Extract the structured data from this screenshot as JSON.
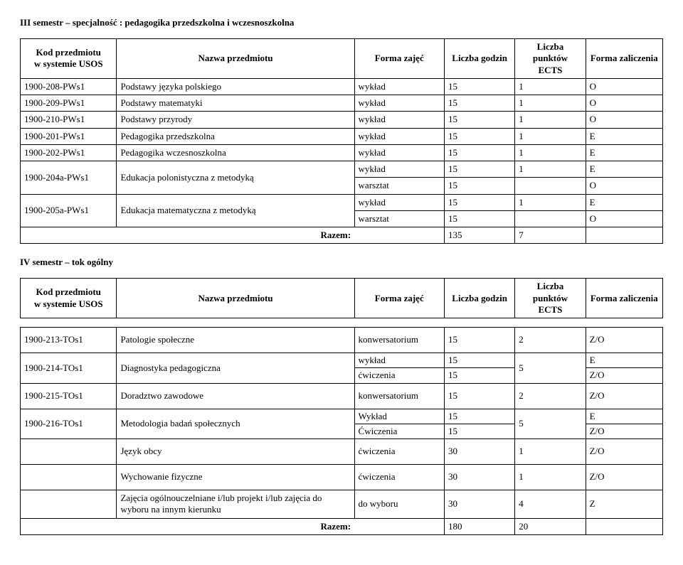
{
  "labels": {
    "razem": "Razem:"
  },
  "headers": {
    "code": "Kod przedmiotu\nw systemie USOS",
    "name": "Nazwa przedmiotu",
    "form": "Forma zajęć",
    "hours": "Liczba godzin",
    "points": "Liczba punktów\nECTS",
    "grade": "Forma zaliczenia"
  },
  "section1": {
    "title": "III semestr – specjalność : pedagogika przedszkolna i wczesnoszkolna",
    "rows": [
      {
        "code": "1900-208-PWs1",
        "name": "Podstawy języka polskiego",
        "form": "wykład",
        "hours": "15",
        "points": "1",
        "grade": "O"
      },
      {
        "code": "1900-209-PWs1",
        "name": "Podstawy matematyki",
        "form": "wykład",
        "hours": "15",
        "points": "1",
        "grade": "O"
      },
      {
        "code": "1900-210-PWs1",
        "name": "Podstawy przyrody",
        "form": "wykład",
        "hours": "15",
        "points": "1",
        "grade": "O"
      },
      {
        "code": "1900-201-PWs1",
        "name": "Pedagogika przedszkolna",
        "form": "wykład",
        "hours": "15",
        "points": "1",
        "grade": "E"
      },
      {
        "code": "1900-202-PWs1",
        "name": "Pedagogika wczesnoszkolna",
        "form": "wykład",
        "hours": "15",
        "points": "1",
        "grade": "E"
      }
    ],
    "multiA": {
      "code": "1900-204a-PWs1",
      "name": "Edukacja polonistyczna z metodyką",
      "lines": [
        {
          "form": "wykład",
          "hours": "15",
          "points": "1",
          "grade": "E"
        },
        {
          "form": "warsztat",
          "hours": "15",
          "points": "",
          "grade": "O"
        }
      ]
    },
    "multiB": {
      "code": "1900-205a-PWs1",
      "name": "Edukacja matematyczna z metodyką",
      "lines": [
        {
          "form": "wykład",
          "hours": "15",
          "points": "1",
          "grade": "E"
        },
        {
          "form": "warsztat",
          "hours": "15",
          "points": "",
          "grade": "O"
        }
      ]
    },
    "total": {
      "hours": "135",
      "points": "7"
    }
  },
  "section2": {
    "title": "IV semestr – tok ogólny",
    "row1": {
      "code": "1900-213-TOs1",
      "name": "Patologie społeczne",
      "form": "konwersatorium",
      "hours": "15",
      "points": "2",
      "grade": "Z/O"
    },
    "row2": {
      "code": "1900-214-TOs1",
      "name": "Diagnostyka pedagogiczna",
      "lineA": {
        "form": "wykład",
        "hours": "15",
        "grade": "E"
      },
      "lineB": {
        "form": "ćwiczenia",
        "hours": "15",
        "grade": "Z/O"
      },
      "points": "5"
    },
    "row3": {
      "code": "1900-215-TOs1",
      "name": "Doradztwo zawodowe",
      "form": "konwersatorium",
      "hours": "15",
      "points": "2",
      "grade": "Z/O"
    },
    "row4": {
      "code": "1900-216-TOs1",
      "name": "Metodologia badań społecznych",
      "formTop": "Wykład",
      "formBot": "Ćwiczenia",
      "hoursTop": "15",
      "hoursBot": "15",
      "gradeTop": "E",
      "gradeBot": "Z/O",
      "points": "5"
    },
    "row5": {
      "name": "Język obcy",
      "form": "ćwiczenia",
      "hours": "30",
      "points": "1",
      "grade": "Z/O"
    },
    "row6": {
      "name": "Wychowanie fizyczne",
      "form": "ćwiczenia",
      "hours": "30",
      "points": "1",
      "grade": "Z/O"
    },
    "row7": {
      "name": "Zajęcia ogólnouczelniane i/lub projekt i/lub  zajęcia do wyboru na innym  kierunku",
      "form": "do wyboru",
      "hours": "30",
      "points": "4",
      "grade": "Z"
    },
    "total": {
      "hours": "180",
      "points": "20"
    }
  }
}
